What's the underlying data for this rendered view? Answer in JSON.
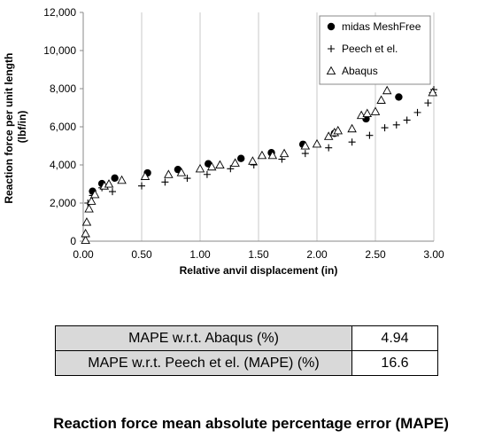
{
  "chart_data": {
    "type": "scatter",
    "xlabel": "Relative anvil displacement (in)",
    "ylabel": [
      "Reaction force per unit length",
      "(lbf/in)"
    ],
    "xlim": [
      0,
      3
    ],
    "ylim": [
      0,
      12000
    ],
    "x_ticks": [
      "0.00",
      "0.50",
      "1.00",
      "1.50",
      "2.00",
      "2.50",
      "3.00"
    ],
    "y_ticks": [
      "0",
      "2,000",
      "4,000",
      "6,000",
      "8,000",
      "10,000",
      "12,000"
    ],
    "grid": "vertical",
    "legend_position": "top-right",
    "series": [
      {
        "name": "midas MeshFree",
        "marker": "filled-circle",
        "color": "#000000",
        "points": [
          [
            0.08,
            2620
          ],
          [
            0.16,
            3020
          ],
          [
            0.27,
            3310
          ],
          [
            0.55,
            3580
          ],
          [
            0.81,
            3760
          ],
          [
            1.07,
            4060
          ],
          [
            1.35,
            4340
          ],
          [
            1.61,
            4640
          ],
          [
            1.88,
            5080
          ],
          [
            2.15,
            5660
          ],
          [
            2.42,
            6420
          ],
          [
            2.7,
            7560
          ]
        ]
      },
      {
        "name": "Peech et el.",
        "marker": "plus",
        "color": "#000000",
        "points": [
          [
            0.04,
            2000
          ],
          [
            0.08,
            2400
          ],
          [
            0.16,
            2800
          ],
          [
            0.25,
            2600
          ],
          [
            0.5,
            2900
          ],
          [
            0.7,
            3100
          ],
          [
            0.89,
            3300
          ],
          [
            1.06,
            3500
          ],
          [
            1.26,
            3800
          ],
          [
            1.46,
            4000
          ],
          [
            1.7,
            4300
          ],
          [
            1.9,
            4600
          ],
          [
            2.1,
            4900
          ],
          [
            2.3,
            5200
          ],
          [
            2.45,
            5550
          ],
          [
            2.58,
            5950
          ],
          [
            2.68,
            6100
          ],
          [
            2.77,
            6350
          ],
          [
            2.86,
            6750
          ],
          [
            2.95,
            7250
          ],
          [
            2.99,
            7800
          ],
          [
            3.0,
            7950
          ]
        ]
      },
      {
        "name": "Abaqus",
        "marker": "open-triangle",
        "color": "#000000",
        "points": [
          [
            0.02,
            50
          ],
          [
            0.02,
            400
          ],
          [
            0.03,
            1000
          ],
          [
            0.05,
            1700
          ],
          [
            0.07,
            2100
          ],
          [
            0.1,
            2450
          ],
          [
            0.18,
            2900
          ],
          [
            0.22,
            3000
          ],
          [
            0.33,
            3200
          ],
          [
            0.53,
            3400
          ],
          [
            0.73,
            3500
          ],
          [
            0.84,
            3600
          ],
          [
            1.0,
            3800
          ],
          [
            1.1,
            3900
          ],
          [
            1.17,
            4000
          ],
          [
            1.3,
            4100
          ],
          [
            1.45,
            4200
          ],
          [
            1.53,
            4500
          ],
          [
            1.62,
            4500
          ],
          [
            1.72,
            4600
          ],
          [
            1.9,
            5000
          ],
          [
            2.0,
            5100
          ],
          [
            2.1,
            5500
          ],
          [
            2.15,
            5700
          ],
          [
            2.18,
            5800
          ],
          [
            2.3,
            5900
          ],
          [
            2.38,
            6600
          ],
          [
            2.43,
            6700
          ],
          [
            2.5,
            6800
          ],
          [
            2.55,
            7400
          ],
          [
            2.6,
            7900
          ],
          [
            2.99,
            7800
          ]
        ]
      }
    ]
  },
  "table": {
    "rows": [
      {
        "label": "MAPE w.r.t. Abaqus (%)",
        "value": "4.94"
      },
      {
        "label": "MAPE w.r.t. Peech et el. (MAPE) (%)",
        "value": "16.6"
      }
    ]
  },
  "caption": "Reaction force mean absolute percentage error (MAPE)"
}
